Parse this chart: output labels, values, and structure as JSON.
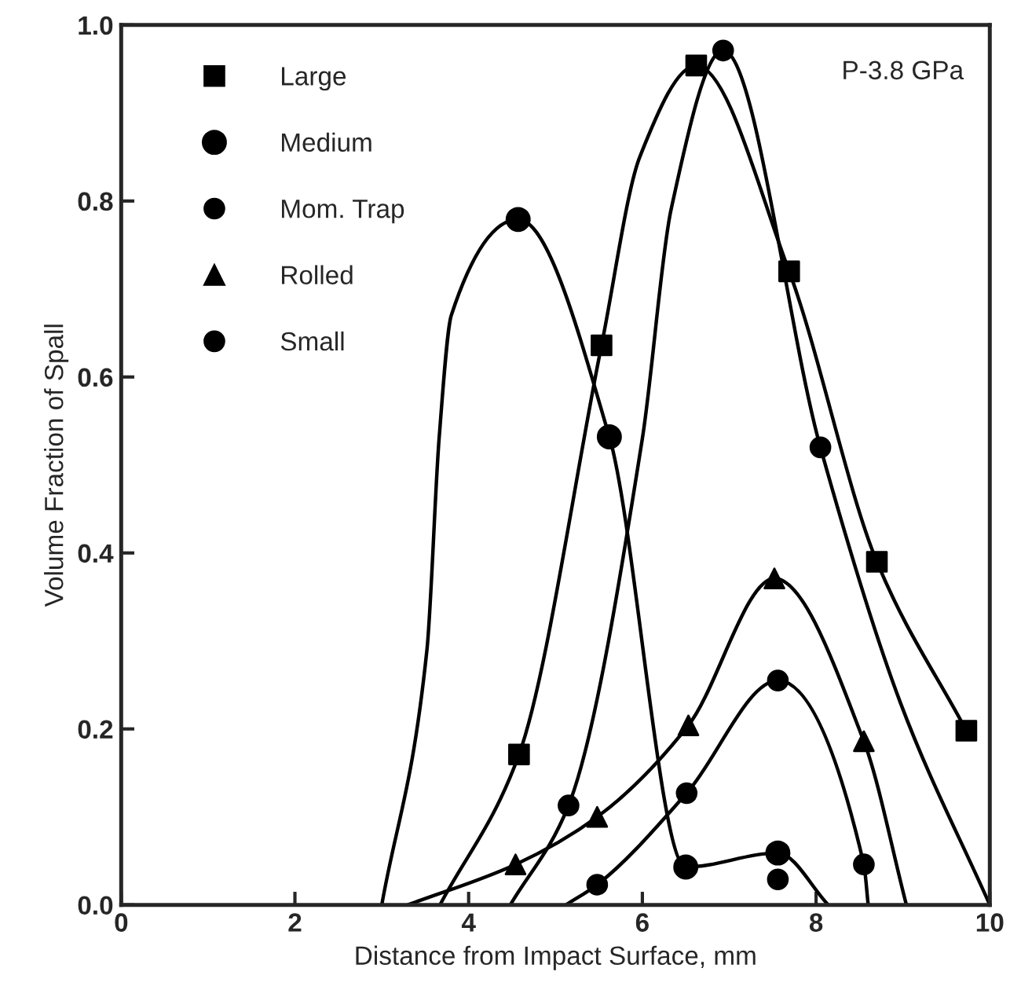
{
  "chart_data": {
    "type": "scatter",
    "xlabel": "Distance from Impact Surface, mm",
    "ylabel": "Volume Fraction of Spall",
    "annotations": [
      "P-3.8 GPa"
    ],
    "xlim": [
      0,
      10
    ],
    "ylim": [
      0,
      1.0
    ],
    "xticks": [
      0,
      2,
      4,
      6,
      8,
      10
    ],
    "yticks": [
      {
        "value": 0,
        "label": "0.0"
      },
      {
        "value": 0.2,
        "label": "0.2"
      },
      {
        "value": 0.4,
        "label": "0.4"
      },
      {
        "value": 0.6,
        "label": "0.6"
      },
      {
        "value": 0.8,
        "label": "0.8"
      },
      {
        "value": 1.0,
        "label": "1.0"
      }
    ],
    "grid": false,
    "legend": "top left",
    "series": [
      {
        "name": "Large",
        "marker": "square",
        "color": "#000000",
        "x": [
          4.58,
          5.53,
          6.62,
          7.69,
          8.7,
          9.73
        ],
        "values": [
          0.171,
          0.636,
          0.954,
          0.72,
          0.39,
          0.198
        ]
      },
      {
        "name": "Medium",
        "marker": "circle",
        "color": "#000000",
        "x": [
          4.57,
          5.62,
          6.5,
          7.56
        ],
        "values": [
          0.779,
          0.532,
          0.043,
          0.059
        ]
      },
      {
        "name": "Mom. Trap",
        "marker": "circle",
        "color": "#000000",
        "x": [
          5.15,
          6.93,
          8.05,
          7.56
        ],
        "values": [
          0.113,
          0.971,
          0.52,
          0.029
        ]
      },
      {
        "name": "Rolled",
        "marker": "triangle",
        "color": "#000000",
        "x": [
          4.54,
          5.48,
          6.53,
          7.52,
          8.55
        ],
        "values": [
          0.046,
          0.1,
          0.204,
          0.371,
          0.186
        ]
      },
      {
        "name": "Small",
        "marker": "circle",
        "color": "#000000",
        "x": [
          5.48,
          6.51,
          7.56,
          8.55
        ],
        "values": [
          0.023,
          0.127,
          0.255,
          0.046
        ]
      },
      {
        "type": "line",
        "color": "#000000",
        "x": [
          3.67,
          4.58,
          5.53,
          5.97,
          6.62,
          7.69,
          8.7,
          9.73
        ],
        "values": [
          0,
          0.171,
          0.636,
          0.85,
          0.954,
          0.72,
          0.39,
          0.198
        ]
      },
      {
        "type": "line",
        "color": "#000000",
        "x": [
          3.0,
          3.52,
          3.66,
          3.8,
          4.57,
          5.62,
          6.5,
          7.56,
          8.14
        ],
        "values": [
          0,
          0.29,
          0.53,
          0.67,
          0.779,
          0.532,
          0.043,
          0.059,
          0
        ]
      },
      {
        "type": "line",
        "color": "#000000",
        "x": [
          4.48,
          5.15,
          6.0,
          6.33,
          6.93,
          8.05,
          8.97,
          10.0
        ],
        "values": [
          0,
          0.113,
          0.53,
          0.79,
          0.971,
          0.52,
          0.23,
          0
        ]
      },
      {
        "type": "line",
        "color": "#000000",
        "x": [
          3.3,
          4.54,
          5.48,
          6.53,
          7.52,
          8.55,
          9.04
        ],
        "values": [
          0,
          0.046,
          0.1,
          0.204,
          0.371,
          0.186,
          0
        ]
      },
      {
        "type": "line",
        "color": "#000000",
        "x": [
          5.12,
          5.48,
          6.51,
          7.56,
          8.55,
          8.6
        ],
        "values": [
          0,
          0.023,
          0.127,
          0.255,
          0.046,
          0
        ]
      }
    ]
  }
}
